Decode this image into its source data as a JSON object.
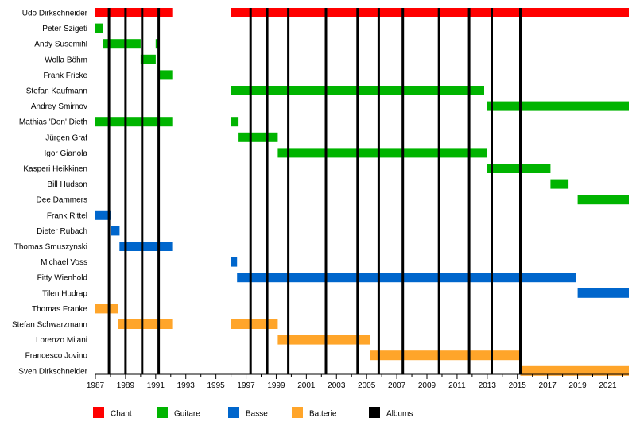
{
  "chart_data": {
    "type": "timeline",
    "title": "",
    "x_range": [
      1987,
      2022.4
    ],
    "x_ticks": [
      1987,
      1989,
      1991,
      1993,
      1995,
      1997,
      1999,
      2001,
      2003,
      2005,
      2007,
      2009,
      2011,
      2013,
      2015,
      2017,
      2019,
      2021
    ],
    "grid": false,
    "legend_position": "bottom",
    "role_colors": {
      "Chant": "#ff0000",
      "Guitare": "#00b400",
      "Basse": "#0066cc",
      "Batterie": "#ffa52a",
      "Albums": "#000000"
    },
    "legend": [
      {
        "label": "Chant",
        "color": "#ff0000"
      },
      {
        "label": "Guitare",
        "color": "#00b400"
      },
      {
        "label": "Basse",
        "color": "#0066cc"
      },
      {
        "label": "Batterie",
        "color": "#ffa52a"
      },
      {
        "label": "Albums",
        "color": "#000000"
      }
    ],
    "albums": [
      1987.9,
      1989.0,
      1990.1,
      1991.2,
      1997.3,
      1998.4,
      1999.8,
      2002.3,
      2004.4,
      2005.8,
      2007.4,
      2009.8,
      2011.8,
      2013.3,
      2015.2
    ],
    "members": [
      {
        "name": "Udo Dirkschneider",
        "periods": [
          {
            "role": "Chant",
            "start": 1987.0,
            "end": 1992.1
          },
          {
            "role": "Chant",
            "start": 1996.0,
            "end": 2022.4
          }
        ]
      },
      {
        "name": "Peter Szigeti",
        "periods": [
          {
            "role": "Guitare",
            "start": 1987.0,
            "end": 1987.5
          }
        ]
      },
      {
        "name": "Andy Susemihl",
        "periods": [
          {
            "role": "Guitare",
            "start": 1987.5,
            "end": 1990.0
          },
          {
            "role": "Guitare",
            "start": 1991.0,
            "end": 1991.2
          }
        ]
      },
      {
        "name": "Wolla Böhm",
        "periods": [
          {
            "role": "Guitare",
            "start": 1990.0,
            "end": 1991.0
          }
        ]
      },
      {
        "name": "Frank Fricke",
        "periods": [
          {
            "role": "Guitare",
            "start": 1991.2,
            "end": 1992.1
          }
        ]
      },
      {
        "name": "Stefan Kaufmann",
        "periods": [
          {
            "role": "Guitare",
            "start": 1996.0,
            "end": 2012.8
          }
        ]
      },
      {
        "name": "Andrey Smirnov",
        "periods": [
          {
            "role": "Guitare",
            "start": 2013.0,
            "end": 2022.4
          }
        ]
      },
      {
        "name": "Mathias 'Don' Dieth",
        "periods": [
          {
            "role": "Guitare",
            "start": 1987.0,
            "end": 1992.1
          },
          {
            "role": "Guitare",
            "start": 1996.0,
            "end": 1996.5
          }
        ]
      },
      {
        "name": "Jürgen Graf",
        "periods": [
          {
            "role": "Guitare",
            "start": 1996.5,
            "end": 1999.1
          }
        ]
      },
      {
        "name": "Igor Gianola",
        "periods": [
          {
            "role": "Guitare",
            "start": 1999.1,
            "end": 2013.0
          }
        ]
      },
      {
        "name": "Kasperi Heikkinen",
        "periods": [
          {
            "role": "Guitare",
            "start": 2013.0,
            "end": 2017.2
          }
        ]
      },
      {
        "name": "Bill Hudson",
        "periods": [
          {
            "role": "Guitare",
            "start": 2017.2,
            "end": 2018.4
          }
        ]
      },
      {
        "name": "Dee Dammers",
        "periods": [
          {
            "role": "Guitare",
            "start": 2019.0,
            "end": 2022.4
          }
        ]
      },
      {
        "name": "Frank Rittel",
        "periods": [
          {
            "role": "Basse",
            "start": 1987.0,
            "end": 1988.0
          }
        ]
      },
      {
        "name": "Dieter Rubach",
        "periods": [
          {
            "role": "Basse",
            "start": 1988.0,
            "end": 1988.6
          }
        ]
      },
      {
        "name": "Thomas Smuszynski",
        "periods": [
          {
            "role": "Basse",
            "start": 1988.6,
            "end": 1992.1
          }
        ]
      },
      {
        "name": "Michael Voss",
        "periods": [
          {
            "role": "Basse",
            "start": 1996.0,
            "end": 1996.4
          }
        ]
      },
      {
        "name": "Fitty Wienhold",
        "periods": [
          {
            "role": "Basse",
            "start": 1996.4,
            "end": 2018.9
          }
        ]
      },
      {
        "name": "Tilen Hudrap",
        "periods": [
          {
            "role": "Basse",
            "start": 2019.0,
            "end": 2022.4
          }
        ]
      },
      {
        "name": "Thomas Franke",
        "periods": [
          {
            "role": "Batterie",
            "start": 1987.0,
            "end": 1988.5
          }
        ]
      },
      {
        "name": "Stefan Schwarzmann",
        "periods": [
          {
            "role": "Batterie",
            "start": 1988.5,
            "end": 1992.1
          },
          {
            "role": "Batterie",
            "start": 1996.0,
            "end": 1999.1
          }
        ]
      },
      {
        "name": "Lorenzo Milani",
        "periods": [
          {
            "role": "Batterie",
            "start": 1999.1,
            "end": 2005.2
          }
        ]
      },
      {
        "name": "Francesco Jovino",
        "periods": [
          {
            "role": "Batterie",
            "start": 2005.2,
            "end": 2015.2
          }
        ]
      },
      {
        "name": "Sven Dirkschneider",
        "periods": [
          {
            "role": "Batterie",
            "start": 2015.2,
            "end": 2022.4
          }
        ]
      }
    ]
  }
}
